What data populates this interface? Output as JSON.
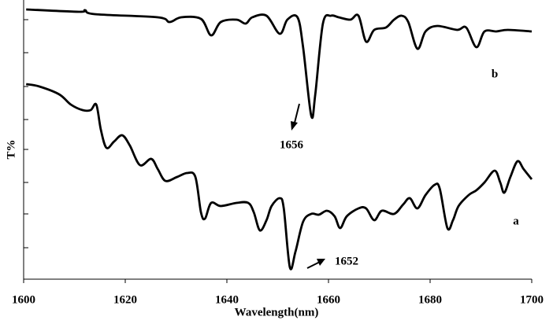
{
  "chart_data": {
    "type": "line",
    "x_label": "Wavelength(nm)",
    "y_label": "T%",
    "xlim": [
      1600,
      1700
    ],
    "xticks": [
      1600,
      1620,
      1640,
      1660,
      1680,
      1700
    ],
    "ylim": [
      0,
      71
    ],
    "series": [
      {
        "name": "b",
        "color": "#000000",
        "x": [
          1600.5,
          1610.9,
          1612.1,
          1614.0,
          1626.4,
          1628.7,
          1631.0,
          1634.9,
          1636.9,
          1638.8,
          1641.9,
          1643.7,
          1645.0,
          1647.8,
          1650.4,
          1651.9,
          1653.9,
          1655.0,
          1656.6,
          1657.4,
          1658.9,
          1660.5,
          1662.0,
          1664.3,
          1665.9,
          1667.4,
          1669.0,
          1671.3,
          1672.9,
          1674.4,
          1675.7,
          1677.5,
          1679.1,
          1681.4,
          1685.3,
          1687.1,
          1689.1,
          1690.7,
          1693.0,
          1695.3,
          1700
        ],
        "values": [
          68.6,
          68,
          68.4,
          67.4,
          66.6,
          65.4,
          66.6,
          66.2,
          62,
          65.4,
          66,
          65,
          66.6,
          67,
          62.4,
          66,
          66.6,
          59,
          41.6,
          47,
          65,
          67,
          66.6,
          66,
          67,
          60.4,
          63.4,
          64,
          66,
          67,
          65.4,
          58.6,
          63,
          64.4,
          63.4,
          64,
          59,
          63,
          63,
          63.4,
          63
        ]
      },
      {
        "name": "a",
        "color": "#000000",
        "x": [
          1600.5,
          1603.1,
          1607.0,
          1609.3,
          1611.6,
          1613.2,
          1614.3,
          1615.2,
          1616.3,
          1617.8,
          1619.4,
          1620.9,
          1622.9,
          1625.1,
          1626.4,
          1627.9,
          1630.2,
          1632.2,
          1633.8,
          1634.9,
          1635.7,
          1636.9,
          1638.8,
          1641.9,
          1644.2,
          1645.3,
          1646.5,
          1647.8,
          1648.8,
          1650.4,
          1651.2,
          1652.4,
          1653.5,
          1655.0,
          1656.6,
          1658.1,
          1659.7,
          1661.2,
          1662.3,
          1663.6,
          1665.9,
          1667.4,
          1669.0,
          1670.5,
          1672.9,
          1674.7,
          1676.0,
          1677.5,
          1679.1,
          1680.9,
          1681.9,
          1683.4,
          1684.5,
          1685.6,
          1687.6,
          1689.1,
          1690.7,
          1692.7,
          1693.8,
          1694.6,
          1695.8,
          1697.2,
          1698.4,
          1700
        ],
        "values": [
          49.6,
          49,
          47,
          44.4,
          43,
          43,
          44.4,
          38,
          33.4,
          35,
          36.6,
          34,
          29,
          30.6,
          28,
          25,
          26,
          27,
          26,
          17,
          15.4,
          19.4,
          18.6,
          19.4,
          19.4,
          17,
          12.4,
          15,
          18.6,
          20.6,
          18,
          3,
          7,
          14.6,
          16.6,
          16.4,
          17.4,
          16,
          13,
          16,
          18,
          18,
          15,
          17.4,
          16.6,
          19,
          20.6,
          18,
          21.4,
          24,
          23,
          13,
          15,
          18.6,
          21.4,
          22.6,
          24.6,
          27.6,
          24.6,
          22,
          26,
          30,
          28,
          25.4
        ]
      }
    ],
    "annotations": [
      "1656",
      "1652"
    ]
  }
}
